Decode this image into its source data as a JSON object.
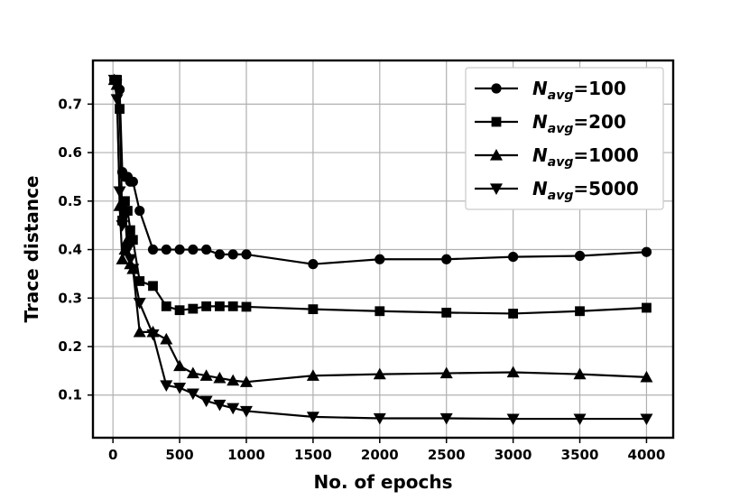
{
  "chart_data": {
    "type": "line",
    "xlabel": "No. of epochs",
    "ylabel": "Trace distance",
    "xlim": [
      -150,
      4200
    ],
    "ylim": [
      0.012,
      0.79
    ],
    "xticks": [
      0,
      500,
      1000,
      1500,
      2000,
      2500,
      3000,
      3500,
      4000
    ],
    "xtick_labels": [
      "0",
      "500",
      "1000",
      "1500",
      "2000",
      "2500",
      "3000",
      "3500",
      "4000"
    ],
    "yticks": [
      0.1,
      0.2,
      0.3,
      0.4,
      0.5,
      0.6,
      0.7
    ],
    "ytick_labels": [
      "0.1",
      "0.2",
      "0.3",
      "0.4",
      "0.5",
      "0.6",
      "0.7"
    ],
    "grid": true,
    "legend_position": "top-right",
    "series": [
      {
        "name_main": "N",
        "name_sub": "avg",
        "name_rest": "=100",
        "marker": "circle",
        "color": "#000000",
        "x": [
          10,
          30,
          50,
          70,
          90,
          110,
          130,
          150,
          200,
          300,
          400,
          500,
          600,
          700,
          800,
          900,
          1000,
          1500,
          2000,
          2500,
          3000,
          3500,
          4000
        ],
        "y": [
          0.75,
          0.75,
          0.73,
          0.56,
          0.55,
          0.55,
          0.54,
          0.54,
          0.48,
          0.4,
          0.4,
          0.4,
          0.4,
          0.4,
          0.39,
          0.39,
          0.39,
          0.37,
          0.38,
          0.38,
          0.385,
          0.387,
          0.395
        ]
      },
      {
        "name_main": "N",
        "name_sub": "avg",
        "name_rest": "=200",
        "marker": "square",
        "color": "#000000",
        "x": [
          10,
          30,
          50,
          70,
          90,
          110,
          130,
          150,
          200,
          300,
          400,
          500,
          600,
          700,
          800,
          900,
          1000,
          1500,
          2000,
          2500,
          3000,
          3500,
          4000
        ],
        "y": [
          0.75,
          0.75,
          0.69,
          0.46,
          0.5,
          0.48,
          0.44,
          0.42,
          0.335,
          0.325,
          0.283,
          0.275,
          0.278,
          0.283,
          0.283,
          0.283,
          0.282,
          0.277,
          0.273,
          0.27,
          0.268,
          0.273,
          0.28
        ]
      },
      {
        "name_main": "N",
        "name_sub": "avg",
        "name_rest": "=1000",
        "marker": "triangle-up",
        "color": "#000000",
        "x": [
          10,
          30,
          50,
          70,
          90,
          110,
          130,
          150,
          200,
          300,
          400,
          500,
          600,
          700,
          800,
          900,
          1000,
          1500,
          2000,
          2500,
          3000,
          3500,
          4000
        ],
        "y": [
          0.75,
          0.74,
          0.49,
          0.38,
          0.4,
          0.42,
          0.37,
          0.36,
          0.23,
          0.23,
          0.215,
          0.16,
          0.145,
          0.14,
          0.135,
          0.13,
          0.127,
          0.14,
          0.143,
          0.145,
          0.147,
          0.143,
          0.137
        ]
      },
      {
        "name_main": "N",
        "name_sub": "avg",
        "name_rest": "=5000",
        "marker": "triangle-down",
        "color": "#000000",
        "x": [
          10,
          30,
          50,
          70,
          90,
          110,
          130,
          150,
          200,
          300,
          400,
          500,
          600,
          700,
          800,
          900,
          1000,
          1500,
          2000,
          2500,
          3000,
          3500,
          4000
        ],
        "y": [
          0.75,
          0.71,
          0.52,
          0.45,
          0.47,
          0.4,
          0.38,
          0.36,
          0.29,
          0.225,
          0.12,
          0.115,
          0.103,
          0.088,
          0.08,
          0.073,
          0.067,
          0.055,
          0.052,
          0.052,
          0.051,
          0.051,
          0.051
        ]
      }
    ]
  }
}
